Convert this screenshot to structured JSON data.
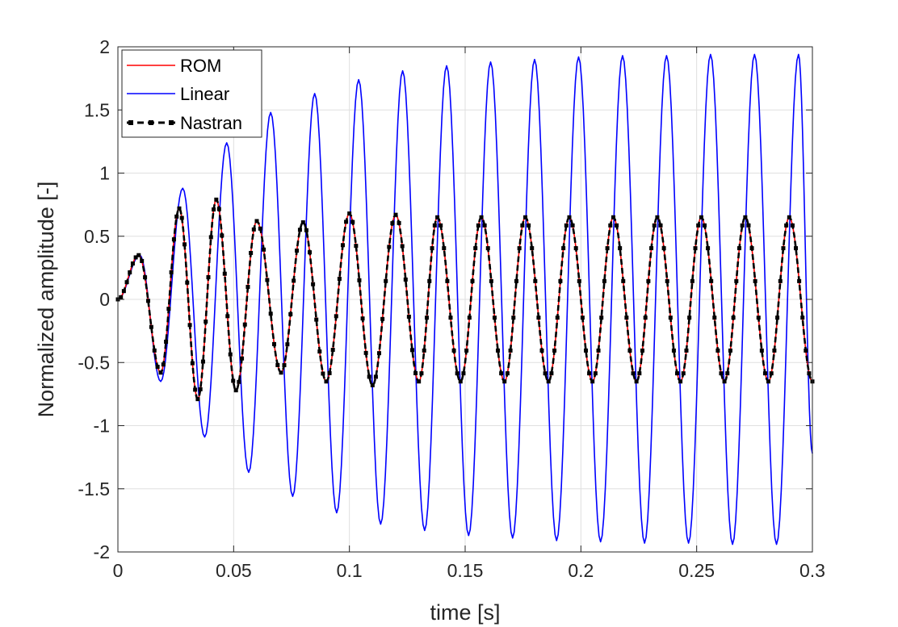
{
  "chart_data": {
    "type": "line",
    "title": "",
    "xlabel": "time [s]",
    "ylabel": "Normalized amplitude [-]",
    "xlim": [
      0,
      0.3
    ],
    "ylim": [
      -2,
      2
    ],
    "xticks": [
      0,
      0.05,
      0.1,
      0.15,
      0.2,
      0.25,
      0.3
    ],
    "xtick_labels": [
      "0",
      "0.05",
      "0.1",
      "0.15",
      "0.2",
      "0.25",
      "0.3"
    ],
    "yticks": [
      -2,
      -1.5,
      -1,
      -0.5,
      0,
      0.5,
      1,
      1.5,
      2
    ],
    "ytick_labels": [
      "-2",
      "-1.5",
      "-1",
      "-0.5",
      "0",
      "0.5",
      "1",
      "1.5",
      "2"
    ],
    "grid": true,
    "legend_position": "top-left",
    "series": [
      {
        "name": "ROM",
        "color": "#ff0000",
        "style": "solid",
        "extrema": [
          [
            0,
            0
          ],
          [
            0.009,
            0.35
          ],
          [
            0.0185,
            -0.58
          ],
          [
            0.0265,
            0.72
          ],
          [
            0.0345,
            -0.79
          ],
          [
            0.0425,
            0.79
          ],
          [
            0.051,
            -0.72
          ],
          [
            0.06,
            0.62
          ],
          [
            0.0705,
            -0.58
          ],
          [
            0.08,
            0.61
          ],
          [
            0.09,
            -0.65
          ],
          [
            0.1,
            0.68
          ],
          [
            0.11,
            -0.68
          ],
          [
            0.12,
            0.67
          ],
          [
            0.13,
            -0.65
          ],
          [
            0.138,
            0.65
          ],
          [
            0.148,
            -0.65
          ],
          [
            0.157,
            0.65
          ],
          [
            0.167,
            -0.65
          ],
          [
            0.176,
            0.65
          ],
          [
            0.186,
            -0.65
          ],
          [
            0.195,
            0.65
          ],
          [
            0.205,
            -0.65
          ],
          [
            0.214,
            0.65
          ],
          [
            0.224,
            -0.65
          ],
          [
            0.233,
            0.65
          ],
          [
            0.243,
            -0.65
          ],
          [
            0.252,
            0.65
          ],
          [
            0.262,
            -0.65
          ],
          [
            0.271,
            0.65
          ],
          [
            0.281,
            -0.65
          ],
          [
            0.29,
            0.65
          ],
          [
            0.3,
            -0.65
          ]
        ]
      },
      {
        "name": "Linear",
        "color": "#0000ff",
        "style": "solid",
        "extrema": [
          [
            0,
            0
          ],
          [
            0.0095,
            0.35
          ],
          [
            0.0185,
            -0.65
          ],
          [
            0.028,
            0.88
          ],
          [
            0.0375,
            -1.09
          ],
          [
            0.047,
            1.24
          ],
          [
            0.0565,
            -1.37
          ],
          [
            0.066,
            1.48
          ],
          [
            0.0755,
            -1.56
          ],
          [
            0.085,
            1.63
          ],
          [
            0.0945,
            -1.69
          ],
          [
            0.104,
            1.74
          ],
          [
            0.1135,
            -1.78
          ],
          [
            0.123,
            1.81
          ],
          [
            0.1325,
            -1.83
          ],
          [
            0.142,
            1.85
          ],
          [
            0.1515,
            -1.87
          ],
          [
            0.161,
            1.88
          ],
          [
            0.1705,
            -1.89
          ],
          [
            0.18,
            1.9
          ],
          [
            0.1895,
            -1.91
          ],
          [
            0.199,
            1.92
          ],
          [
            0.2085,
            -1.92
          ],
          [
            0.218,
            1.93
          ],
          [
            0.2275,
            -1.93
          ],
          [
            0.237,
            1.93
          ],
          [
            0.2465,
            -1.93
          ],
          [
            0.256,
            1.94
          ],
          [
            0.2655,
            -1.94
          ],
          [
            0.275,
            1.94
          ],
          [
            0.2845,
            -1.94
          ],
          [
            0.294,
            1.94
          ],
          [
            0.3,
            -1.22
          ]
        ]
      },
      {
        "name": "Nastran",
        "color": "#000000",
        "style": "dashed-square-markers",
        "same_as": "ROM"
      }
    ]
  }
}
